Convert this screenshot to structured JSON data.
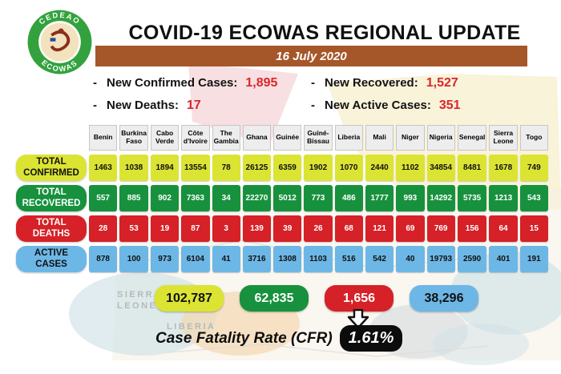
{
  "header": {
    "title": "COVID-19 ECOWAS REGIONAL UPDATE",
    "date": "16 July 2020",
    "logo": {
      "top_text": "CEDEAO",
      "bottom_text": "ECOWAS"
    }
  },
  "stats": [
    {
      "label": "New Confirmed Cases:",
      "value": "1,895"
    },
    {
      "label": "New Recovered:",
      "value": "1,527"
    },
    {
      "label": "New Deaths:",
      "value": "17"
    },
    {
      "label": "New Active Cases:",
      "value": "351"
    }
  ],
  "map_labels": {
    "sierra_leone": "SIERRA\nLEONE",
    "liberia": "LIBERIA"
  },
  "colors": {
    "date_bar_brown": "#a5572a",
    "stat_value_red": "#d8272e",
    "confirmed_yellow": "#dbe433",
    "recovered_green": "#17913d",
    "deaths_red": "#d52127",
    "active_blue": "#6db7e6",
    "cfr_badge_black": "#0c0c0c"
  },
  "chart_data": {
    "type": "table",
    "title": "COVID-19 ECOWAS REGIONAL UPDATE",
    "date": "16 July 2020",
    "categories": [
      "Benin",
      "Burkina Faso",
      "Cabo Verde",
      "Côte d'Ivoire",
      "The Gambia",
      "Ghana",
      "Guinée",
      "Guiné-Bissau",
      "Liberia",
      "Mali",
      "Niger",
      "Nigeria",
      "Senegal",
      "Sierra Leone",
      "Togo"
    ],
    "series": [
      {
        "name": "TOTAL CONFIRMED",
        "color": "#dbe433",
        "text_color": "#101010",
        "values": [
          1463,
          1038,
          1894,
          13554,
          78,
          26125,
          6359,
          1902,
          1070,
          2440,
          1102,
          34854,
          8481,
          1678,
          749
        ],
        "total": "102,787"
      },
      {
        "name": "TOTAL RECOVERED",
        "color": "#17913d",
        "text_color": "#ffffff",
        "values": [
          557,
          885,
          902,
          7363,
          34,
          22270,
          5012,
          773,
          486,
          1777,
          993,
          14292,
          5735,
          1213,
          543
        ],
        "total": "62,835"
      },
      {
        "name": "TOTAL DEATHS",
        "color": "#d52127",
        "text_color": "#ffffff",
        "values": [
          28,
          53,
          19,
          87,
          3,
          139,
          39,
          26,
          68,
          121,
          69,
          769,
          156,
          64,
          15
        ],
        "total": "1,656"
      },
      {
        "name": "ACTIVE CASES",
        "color": "#6db7e6",
        "text_color": "#101010",
        "values": [
          878,
          100,
          973,
          6104,
          41,
          3716,
          1308,
          1103,
          516,
          542,
          40,
          19793,
          2590,
          401,
          191
        ],
        "total": "38,296"
      }
    ],
    "cfr": {
      "label": "Case Fatality Rate (CFR)",
      "value": "1.61%"
    }
  }
}
